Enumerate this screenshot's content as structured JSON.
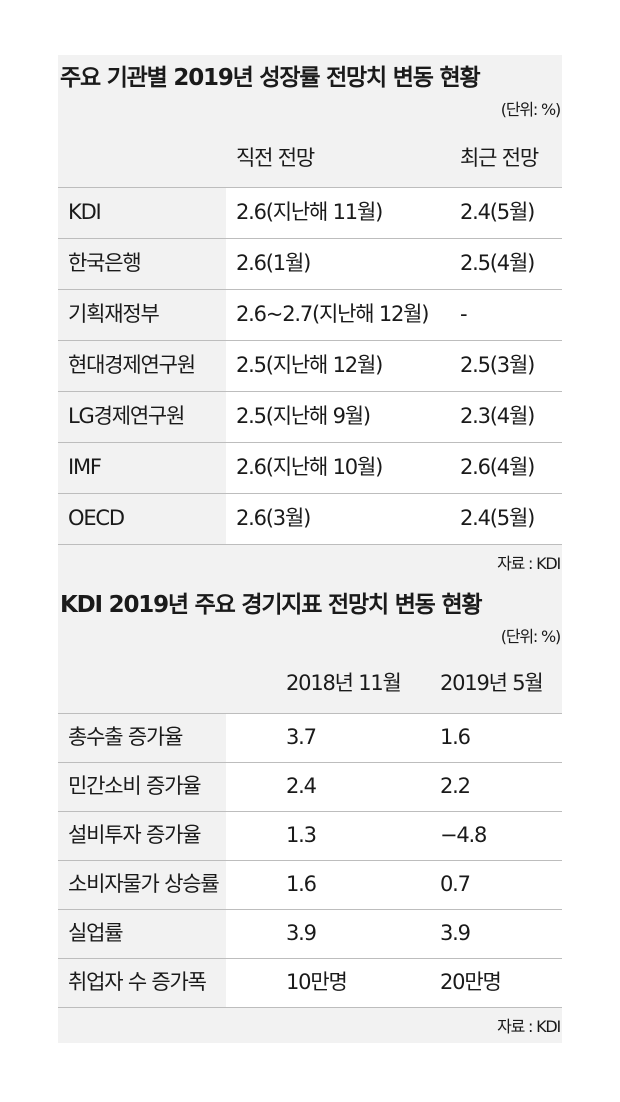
{
  "tables": [
    {
      "title": "주요 기관별 2019년 성장률 전망치 변동 현황",
      "unit": "(단위: %)",
      "columns": [
        "직전 전망",
        "최근 전망"
      ],
      "rows": [
        [
          "KDI",
          "2.6(지난해 11월)",
          "2.4(5월)"
        ],
        [
          "한국은행",
          "2.6(1월)",
          "2.5(4월)"
        ],
        [
          "기획재정부",
          "2.6~2.7(지난해 12월)",
          "-"
        ],
        [
          "현대경제연구원",
          "2.5(지난해 12월)",
          "2.5(3월)"
        ],
        [
          "LG경제연구원",
          "2.5(지난해 9월)",
          "2.3(4월)"
        ],
        [
          "IMF",
          "2.6(지난해 10월)",
          "2.6(4월)"
        ],
        [
          "OECD",
          "2.6(3월)",
          "2.4(5월)"
        ]
      ],
      "source": "자료 : KDI"
    },
    {
      "title": "KDI 2019년 주요 경기지표 전망치 변동 현황",
      "unit": "(단위: %)",
      "columns": [
        "2018년 11월",
        "2019년 5월"
      ],
      "rows": [
        [
          "총수출 증가율",
          "3.7",
          "1.6"
        ],
        [
          "민간소비 증가율",
          "2.4",
          "2.2"
        ],
        [
          "설비투자 증가율",
          "1.3",
          "−4.8"
        ],
        [
          "소비자물가 상승률",
          "1.6",
          "0.7"
        ],
        [
          "실업률",
          "3.9",
          "3.9"
        ],
        [
          "취업자 수 증가폭",
          "10만명",
          "20만명"
        ]
      ],
      "source": "자료 : KDI"
    }
  ]
}
